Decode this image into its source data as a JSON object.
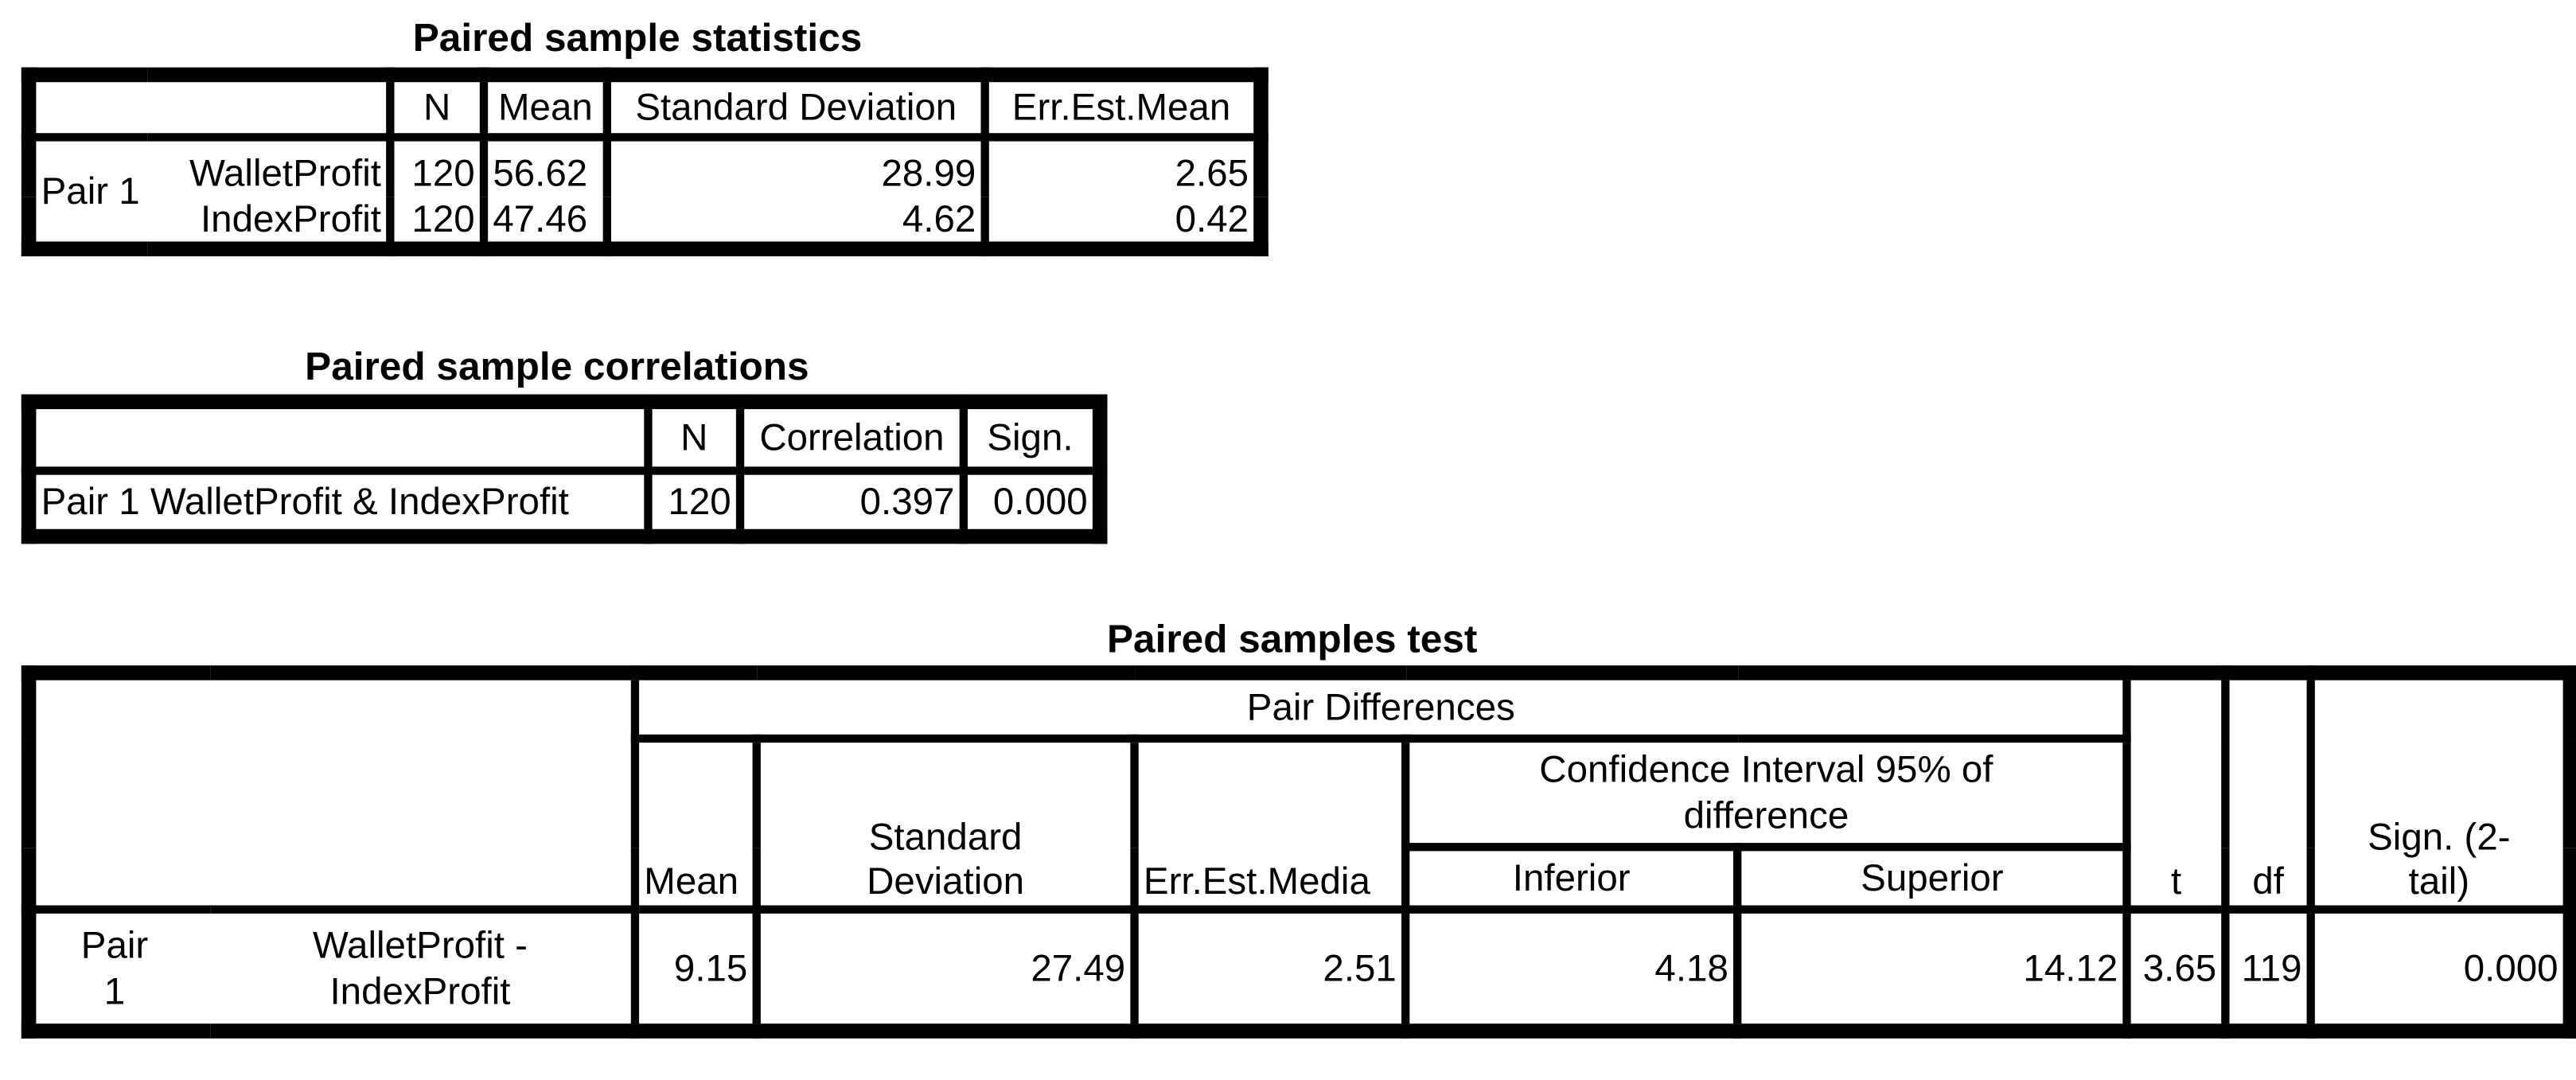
{
  "statistics": {
    "title": "Paired sample statistics",
    "headers": [
      "N",
      "Mean",
      "Standard Deviation",
      "Err.Est.Mean"
    ],
    "pair": "Pair 1",
    "rows": [
      [
        "WalletProfit",
        "120",
        "56.62",
        "28.99",
        "2.65"
      ],
      [
        "IndexProfit",
        "120",
        "47.46",
        "4.62",
        "0.42"
      ]
    ]
  },
  "correlations": {
    "title": "Paired sample correlations",
    "headers": [
      "N",
      "Correlation",
      "Sign."
    ],
    "row": [
      "Pair 1 WalletProfit & IndexProfit",
      "120",
      "0.397",
      "0.000"
    ]
  },
  "test": {
    "title": "Paired samples test",
    "group": "Pair Differences",
    "headers": {
      "mean": "Mean",
      "sd": "Standard Deviation",
      "err": "Err.Est.Media",
      "ci": "Confidence Interval 95% of difference",
      "inferior": "Inferior",
      "superior": "Superior",
      "t": "t",
      "df": "df",
      "sign": "Sign. (2-tail)"
    },
    "row": {
      "pair": "Pair 1",
      "label": "WalletProfit - IndexProfit",
      "values": [
        "9.15",
        "27.49",
        "2.51",
        "4.18",
        "14.12",
        "3.65",
        "119",
        "0.000"
      ]
    }
  }
}
